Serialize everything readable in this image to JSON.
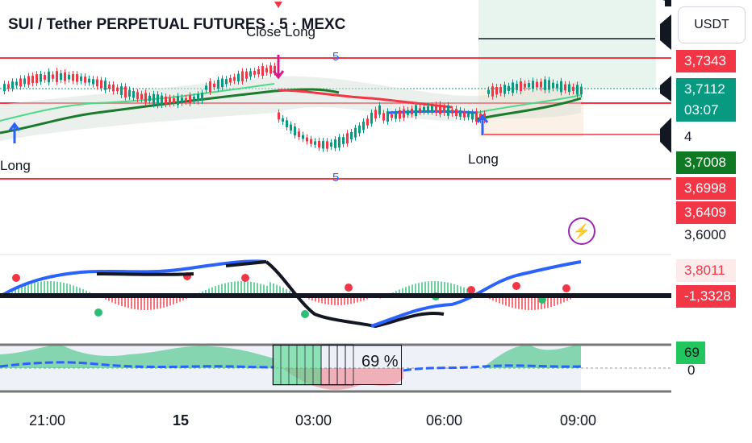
{
  "header": {
    "title": "SUI / Tether PERPETUAL FUTURES · 5 · MEXC"
  },
  "toolbar": {
    "currency_label": "USDT"
  },
  "annotations": {
    "close_long": "Close Long",
    "long_left": "Long",
    "long_right": "Long",
    "five_top": "5",
    "five_bottom": "5"
  },
  "price_badges": {
    "p1": "3,7343",
    "p2": "3,7112",
    "countdown": "03:07",
    "count_4": "4",
    "p3": "3,7008",
    "p4": "3,6998",
    "p5": "3,6409",
    "axis_level": "3,6000"
  },
  "osc_badges": {
    "top": "3,8011",
    "bottom": "-1,3328"
  },
  "pct_panel": {
    "badge": "69",
    "axis_level": "0",
    "box_text": "69 %"
  },
  "time_axis": [
    "21:00",
    "15",
    "03:00",
    "06:00",
    "09:00"
  ],
  "icons": {
    "flash": "lightning-icon"
  },
  "colors": {
    "red": "#f23645",
    "green": "#089981",
    "blue": "#2962ff",
    "dkgreen": "#0f7a23",
    "lime": "#22c55e"
  }
}
